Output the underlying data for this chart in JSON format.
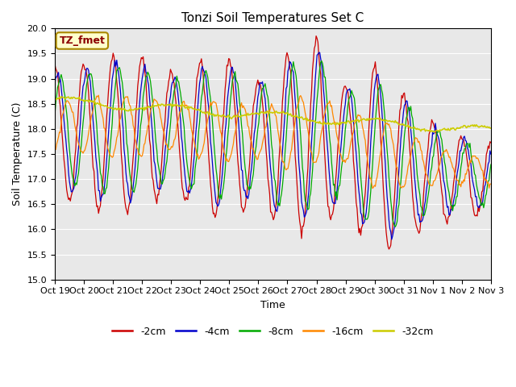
{
  "title": "Tonzi Soil Temperatures Set C",
  "xlabel": "Time",
  "ylabel": "Soil Temperature (C)",
  "ylim": [
    15.0,
    20.0
  ],
  "yticks": [
    15.0,
    15.5,
    16.0,
    16.5,
    17.0,
    17.5,
    18.0,
    18.5,
    19.0,
    19.5,
    20.0
  ],
  "xtick_labels": [
    "Oct 19",
    "Oct 20",
    "Oct 21",
    "Oct 22",
    "Oct 23",
    "Oct 24",
    "Oct 25",
    "Oct 26",
    "Oct 27",
    "Oct 28",
    "Oct 29",
    "Oct 30",
    "Oct 31",
    "Nov 1",
    "Nov 2",
    "Nov 3"
  ],
  "colors": {
    "-2cm": "#cc0000",
    "-4cm": "#0000cc",
    "-8cm": "#00aa00",
    "-16cm": "#ff8800",
    "-32cm": "#cccc00"
  },
  "legend_label": "TZ_fmet",
  "bg_color": "#e8e8e8",
  "n_points": 480,
  "n_days": 15
}
